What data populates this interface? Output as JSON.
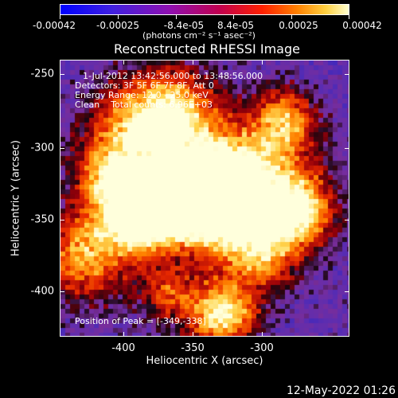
{
  "colorbar": {
    "tick_labels": [
      "-0.00042",
      "-0.00025",
      "-8.4e-05",
      "8.4e-05",
      "0.00025",
      "0.00042"
    ],
    "units": "(photons cm⁻² s⁻¹ asec⁻²)"
  },
  "title": "Reconstructed RHESSI Image",
  "annotations": {
    "time_range": "1-Jul-2012 13:42:56.000 to 13:48:56.000",
    "detectors": "Detectors: 3F 5F 6F 7F 8F, Att 0",
    "energy_range": "Energy Range: 12.0 - 25.0 keV",
    "clean_counts": "Clean    Total counts: 6.96E+03",
    "peak_position": "Position of Peak = [-349,-338]"
  },
  "axes": {
    "x_label": "Heliocentric X (arcsec)",
    "y_label": "Heliocentric Y (arcsec)",
    "x_ticks": [
      "-400",
      "-350",
      "-300"
    ],
    "y_ticks": [
      "-250",
      "-300",
      "-350",
      "-400"
    ]
  },
  "timestamp": "12-May-2022 01:26"
}
